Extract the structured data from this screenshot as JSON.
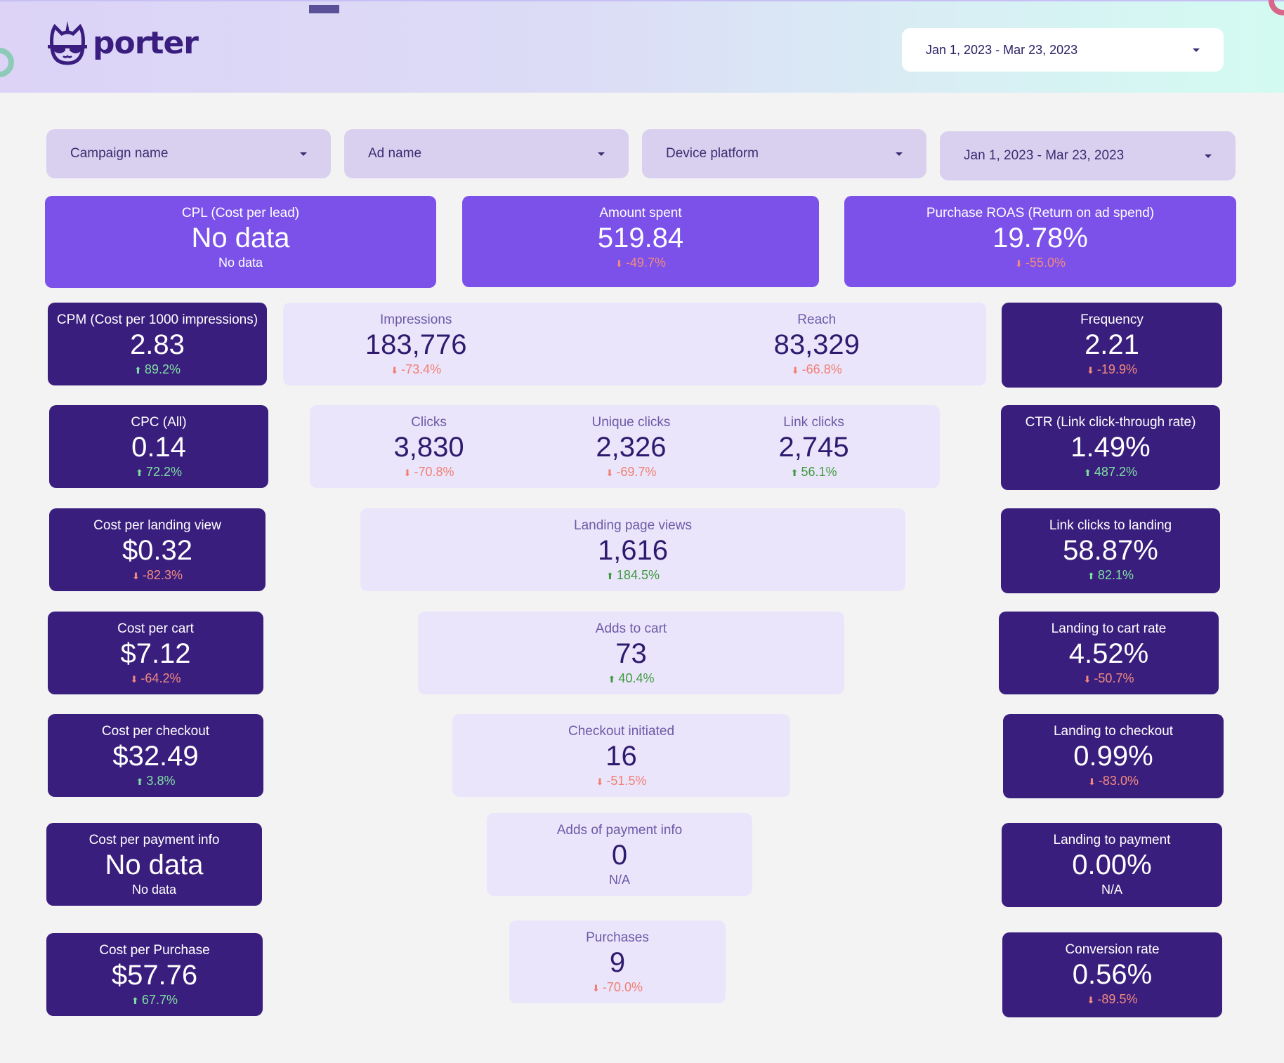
{
  "header": {
    "logo_text": "porter",
    "date_range": "Jan 1, 2023 - Mar 23, 2023"
  },
  "filters": [
    {
      "label": "Campaign name"
    },
    {
      "label": "Ad name"
    },
    {
      "label": "Device platform"
    },
    {
      "label": "Jan 1, 2023 - Mar 23, 2023"
    }
  ],
  "colors": {
    "top_card": "#7b51ea",
    "dark_card": "#3a1e7e",
    "light_card": "#ebe5fb",
    "positive": "#7ee0a0",
    "negative": "#f28b7d"
  },
  "cards": [
    {
      "id": "cpl",
      "style": "top",
      "metrics": [
        {
          "label": "CPL (Cost per lead)",
          "value": "No data",
          "delta": "No data",
          "direction": "none"
        }
      ]
    },
    {
      "id": "amount-spent",
      "style": "top",
      "metrics": [
        {
          "label": "Amount spent",
          "value": "519.84",
          "delta": "-49.7%",
          "direction": "down"
        }
      ]
    },
    {
      "id": "purchase-roas",
      "style": "top",
      "metrics": [
        {
          "label": "Purchase ROAS (Return on ad spend)",
          "value": "19.78%",
          "delta": "-55.0%",
          "direction": "down"
        }
      ]
    },
    {
      "id": "cpm",
      "style": "dark",
      "metrics": [
        {
          "label": "CPM (Cost per 1000 impressions)",
          "value": "2.83",
          "delta": "89.2%",
          "direction": "up"
        }
      ]
    },
    {
      "id": "impressions-reach",
      "style": "light",
      "metrics": [
        {
          "label": "Impressions",
          "value": "183,776",
          "delta": "-73.4%",
          "direction": "down"
        },
        {
          "label": "Reach",
          "value": "83,329",
          "delta": "-66.8%",
          "direction": "down"
        }
      ]
    },
    {
      "id": "frequency",
      "style": "dark",
      "metrics": [
        {
          "label": "Frequency",
          "value": "2.21",
          "delta": "-19.9%",
          "direction": "down"
        }
      ]
    },
    {
      "id": "cpc",
      "style": "dark",
      "metrics": [
        {
          "label": "CPC (All)",
          "value": "0.14",
          "delta": "72.2%",
          "direction": "up"
        }
      ]
    },
    {
      "id": "clicks",
      "style": "light",
      "metrics": [
        {
          "label": "Clicks",
          "value": "3,830",
          "delta": "-70.8%",
          "direction": "down"
        },
        {
          "label": "Unique clicks",
          "value": "2,326",
          "delta": "-69.7%",
          "direction": "down"
        },
        {
          "label": "Link clicks",
          "value": "2,745",
          "delta": "56.1%",
          "direction": "up"
        }
      ]
    },
    {
      "id": "ctr",
      "style": "dark",
      "metrics": [
        {
          "label": "CTR (Link click-through rate)",
          "value": "1.49%",
          "delta": "487.2%",
          "direction": "up"
        }
      ]
    },
    {
      "id": "cost-per-landing-view",
      "style": "dark",
      "metrics": [
        {
          "label": "Cost per landing view",
          "value": "$0.32",
          "delta": "-82.3%",
          "direction": "down"
        }
      ]
    },
    {
      "id": "landing-page-views",
      "style": "light",
      "metrics": [
        {
          "label": "Landing page views",
          "value": "1,616",
          "delta": "184.5%",
          "direction": "up"
        }
      ]
    },
    {
      "id": "link-clicks-to-landing",
      "style": "dark",
      "metrics": [
        {
          "label": "Link clicks to landing",
          "value": "58.87%",
          "delta": "82.1%",
          "direction": "up"
        }
      ]
    },
    {
      "id": "cost-per-cart",
      "style": "dark",
      "metrics": [
        {
          "label": "Cost per cart",
          "value": "$7.12",
          "delta": "-64.2%",
          "direction": "down"
        }
      ]
    },
    {
      "id": "adds-to-cart",
      "style": "light",
      "metrics": [
        {
          "label": "Adds to cart",
          "value": "73",
          "delta": "40.4%",
          "direction": "up"
        }
      ]
    },
    {
      "id": "landing-to-cart-rate",
      "style": "dark",
      "metrics": [
        {
          "label": "Landing to cart rate",
          "value": "4.52%",
          "delta": "-50.7%",
          "direction": "down"
        }
      ]
    },
    {
      "id": "cost-per-checkout",
      "style": "dark",
      "metrics": [
        {
          "label": "Cost per checkout",
          "value": "$32.49",
          "delta": "3.8%",
          "direction": "up"
        }
      ]
    },
    {
      "id": "checkout-initiated",
      "style": "light",
      "metrics": [
        {
          "label": "Checkout initiated",
          "value": "16",
          "delta": "-51.5%",
          "direction": "down"
        }
      ]
    },
    {
      "id": "landing-to-checkout",
      "style": "dark",
      "metrics": [
        {
          "label": "Landing to checkout",
          "value": "0.99%",
          "delta": "-83.0%",
          "direction": "down"
        }
      ]
    },
    {
      "id": "cost-per-payment-info",
      "style": "dark",
      "metrics": [
        {
          "label": "Cost per payment info",
          "value": "No data",
          "delta": "No data",
          "direction": "none"
        }
      ]
    },
    {
      "id": "adds-of-payment-info",
      "style": "light",
      "metrics": [
        {
          "label": "Adds of payment info",
          "value": "0",
          "delta": "N/A",
          "direction": "none"
        }
      ]
    },
    {
      "id": "landing-to-payment",
      "style": "dark",
      "metrics": [
        {
          "label": "Landing to payment",
          "value": "0.00%",
          "delta": "N/A",
          "direction": "none"
        }
      ]
    },
    {
      "id": "cost-per-purchase",
      "style": "dark",
      "metrics": [
        {
          "label": "Cost per Purchase",
          "value": "$57.76",
          "delta": "67.7%",
          "direction": "up"
        }
      ]
    },
    {
      "id": "purchases",
      "style": "light",
      "metrics": [
        {
          "label": "Purchases",
          "value": "9",
          "delta": "-70.0%",
          "direction": "down"
        }
      ]
    },
    {
      "id": "conversion-rate",
      "style": "dark",
      "metrics": [
        {
          "label": "Conversion rate",
          "value": "0.56%",
          "delta": "-89.5%",
          "direction": "down"
        }
      ]
    }
  ]
}
